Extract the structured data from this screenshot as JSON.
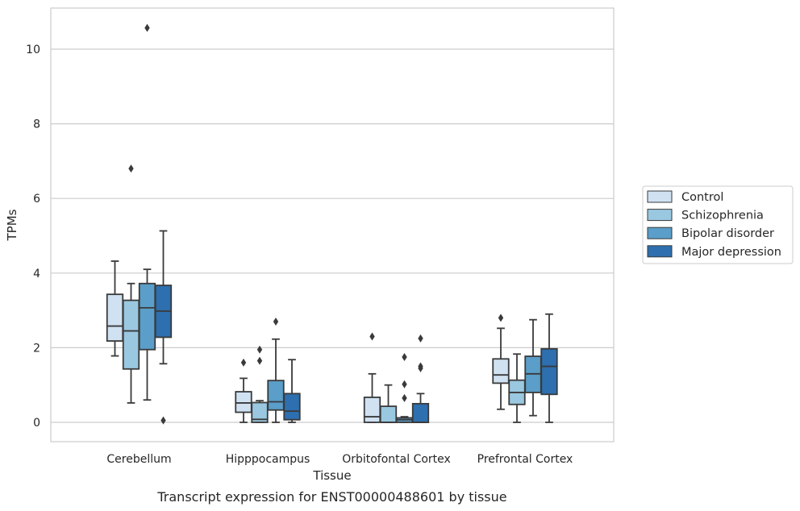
{
  "caption": "Transcript expression for ENST00000488601 by tissue",
  "chart_data": {
    "type": "boxplot",
    "xlabel": "Tissue",
    "ylabel": "TPMs",
    "ylim": [
      -0.5,
      11.1
    ],
    "yticks": [
      0,
      2,
      4,
      6,
      8,
      10
    ],
    "grid": "horizontal",
    "legend_placement": "right",
    "categories": [
      "Cerebellum",
      "Hipppocampus",
      "Orbitofontal Cortex",
      "Prefrontal Cortex"
    ],
    "series": [
      {
        "name": "Control",
        "color": "#d0e1f2",
        "boxes": [
          {
            "whislo": 1.78,
            "q1": 2.18,
            "med": 2.58,
            "q3": 3.43,
            "whishi": 4.32,
            "fliers": []
          },
          {
            "whislo": 0.0,
            "q1": 0.27,
            "med": 0.52,
            "q3": 0.82,
            "whishi": 1.18,
            "fliers": [
              1.6
            ]
          },
          {
            "whislo": 0.0,
            "q1": 0.0,
            "med": 0.15,
            "q3": 0.67,
            "whishi": 1.3,
            "fliers": [
              2.3
            ]
          },
          {
            "whislo": 0.35,
            "q1": 1.05,
            "med": 1.27,
            "q3": 1.7,
            "whishi": 2.52,
            "fliers": [
              2.8
            ]
          }
        ]
      },
      {
        "name": "Schizophrenia",
        "color": "#9ac8e0",
        "boxes": [
          {
            "whislo": 0.52,
            "q1": 1.43,
            "med": 2.45,
            "q3": 3.27,
            "whishi": 3.72,
            "fliers": [
              6.8
            ]
          },
          {
            "whislo": 0.0,
            "q1": 0.0,
            "med": 0.08,
            "q3": 0.53,
            "whishi": 0.58,
            "fliers": [
              1.65,
              1.95
            ]
          },
          {
            "whislo": 0.0,
            "q1": 0.0,
            "med": 0.0,
            "q3": 0.43,
            "whishi": 1.0,
            "fliers": []
          },
          {
            "whislo": 0.0,
            "q1": 0.48,
            "med": 0.8,
            "q3": 1.13,
            "whishi": 1.83,
            "fliers": []
          }
        ]
      },
      {
        "name": "Bipolar disorder",
        "color": "#5a9ec9",
        "boxes": [
          {
            "whislo": 0.6,
            "q1": 1.95,
            "med": 3.07,
            "q3": 3.72,
            "whishi": 4.1,
            "fliers": [
              10.57
            ]
          },
          {
            "whislo": 0.0,
            "q1": 0.33,
            "med": 0.55,
            "q3": 1.12,
            "whishi": 2.23,
            "fliers": [
              2.7
            ]
          },
          {
            "whislo": 0.0,
            "q1": 0.0,
            "med": 0.07,
            "q3": 0.12,
            "whishi": 0.15,
            "fliers": [
              0.65,
              1.02,
              1.75
            ]
          },
          {
            "whislo": 0.18,
            "q1": 0.8,
            "med": 1.3,
            "q3": 1.77,
            "whishi": 2.75,
            "fliers": []
          }
        ]
      },
      {
        "name": "Major depression",
        "color": "#2d6faf",
        "boxes": [
          {
            "whislo": 1.57,
            "q1": 2.28,
            "med": 2.98,
            "q3": 3.67,
            "whishi": 5.13,
            "fliers": [
              0.05
            ]
          },
          {
            "whislo": 0.0,
            "q1": 0.07,
            "med": 0.3,
            "q3": 0.77,
            "whishi": 1.68,
            "fliers": []
          },
          {
            "whislo": 0.0,
            "q1": 0.0,
            "med": 0.0,
            "q3": 0.5,
            "whishi": 0.77,
            "fliers": [
              1.45,
              1.5,
              2.25
            ]
          },
          {
            "whislo": 0.0,
            "q1": 0.75,
            "med": 1.5,
            "q3": 1.97,
            "whishi": 2.9,
            "fliers": []
          }
        ]
      }
    ]
  }
}
